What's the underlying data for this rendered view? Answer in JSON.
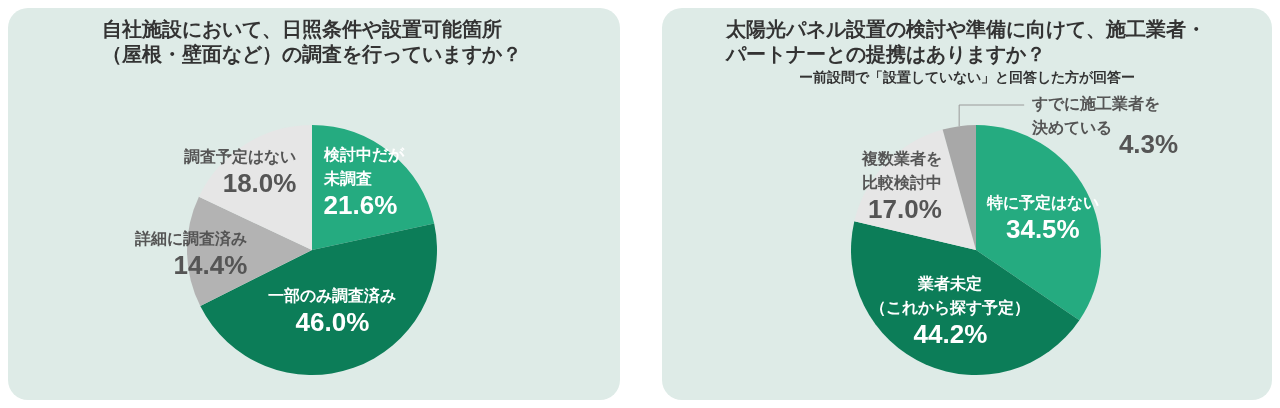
{
  "chart_data": [
    {
      "type": "pie",
      "title": "自社施設において、日照条件や設置可能箇所（屋根・壁面など）の調査を行っていますか？",
      "categories": [
        "検討中だが未調査",
        "一部のみ調査済み",
        "詳細に調査済み",
        "調査予定はない"
      ],
      "values": [
        21.6,
        46.0,
        14.4,
        18.0
      ],
      "value_labels": [
        "21.6%",
        "46.0%",
        "14.4%",
        "18.0%"
      ],
      "colors": [
        "#25ab80",
        "#0c7d58",
        "#b3b3b3",
        "#e6e6e6"
      ]
    },
    {
      "type": "pie",
      "title": "太陽光パネル設置の検討や準備に向けて、施工業者・パートナーとの提携はありますか？",
      "subtitle": "ー前設問で「設置していない」と回答した方が回答ー",
      "categories": [
        "特に予定はない",
        "業者未定（これから探す予定）",
        "複数業者を比較検討中",
        "すでに施工業者を決めている"
      ],
      "values": [
        34.5,
        44.2,
        17.0,
        4.3
      ],
      "value_labels": [
        "34.5%",
        "44.2%",
        "17.0%",
        "4.3%"
      ],
      "colors": [
        "#25ab80",
        "#0c7d58",
        "#e6e6e6",
        "#a8a8a8"
      ]
    }
  ]
}
